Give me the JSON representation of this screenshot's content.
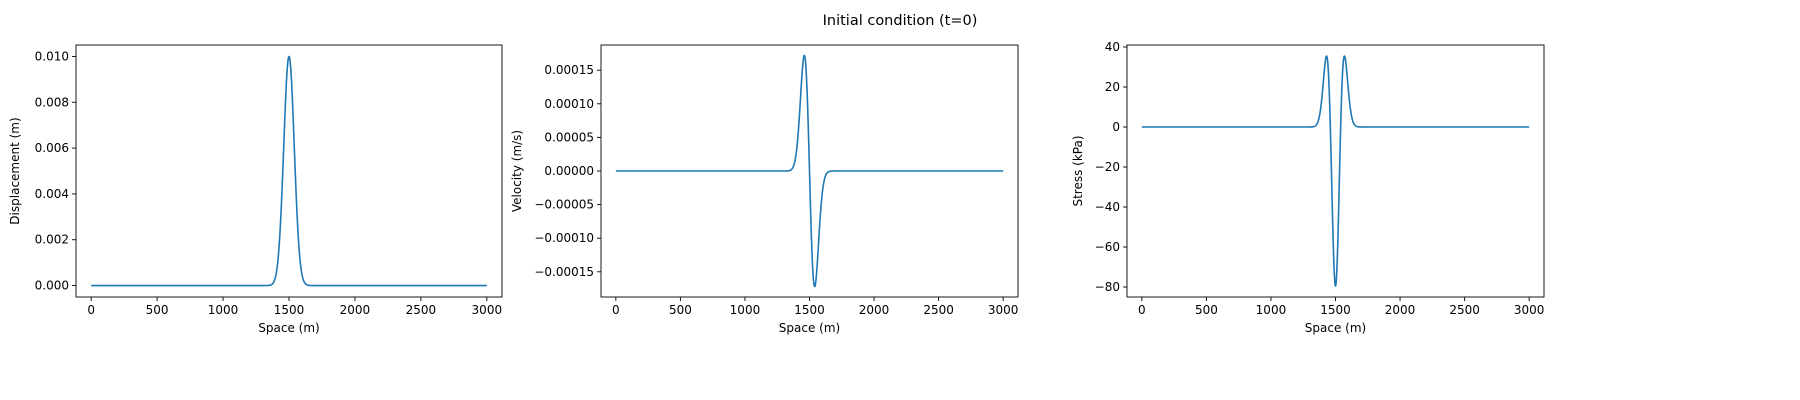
{
  "figure": {
    "suptitle": "Initial condition (t=0)",
    "line_color": "#1f77b4"
  },
  "chart_data": [
    {
      "type": "line",
      "id": "displacement",
      "title": "",
      "xlabel": "Space (m)",
      "ylabel": "Displacement (m)",
      "xlim": [
        -115,
        3115
      ],
      "ylim": [
        -0.0005,
        0.0105
      ],
      "xticks": [
        0,
        500,
        1000,
        1500,
        2000,
        2500,
        3000
      ],
      "xtick_labels": [
        "0",
        "500",
        "1000",
        "1500",
        "2000",
        "2500",
        "3000"
      ],
      "yticks": [
        0,
        0.002,
        0.004,
        0.006,
        0.008,
        0.01
      ],
      "ytick_labels": [
        "0.000",
        "0.002",
        "0.004",
        "0.006",
        "0.008",
        "0.010"
      ],
      "series": [
        {
          "shape": "gaussian",
          "x_range": [
            0,
            3000
          ],
          "center": 1500,
          "sigma": 40,
          "amplitude": 0.01
        }
      ]
    },
    {
      "type": "line",
      "id": "velocity",
      "title": "",
      "xlabel": "Space (m)",
      "ylabel": "Velocity (m/s)",
      "xlim": [
        -115,
        3115
      ],
      "ylim": [
        -0.0001875,
        0.0001875
      ],
      "xticks": [
        0,
        500,
        1000,
        1500,
        2000,
        2500,
        3000
      ],
      "xtick_labels": [
        "0",
        "500",
        "1000",
        "1500",
        "2000",
        "2500",
        "3000"
      ],
      "yticks": [
        -0.00015,
        -0.0001,
        -5e-05,
        0,
        5e-05,
        0.0001,
        0.00015
      ],
      "ytick_labels": [
        "−0.00015",
        "−0.00010",
        "−0.00005",
        "0.00000",
        "0.00005",
        "0.00010",
        "0.00015"
      ],
      "series": [
        {
          "shape": "gaussian-derivative",
          "x_range": [
            0,
            3000
          ],
          "center": 1500,
          "sigma": 40,
          "peak": 0.000172,
          "peak_x": 1460,
          "trough_x": 1540
        }
      ]
    },
    {
      "type": "line",
      "id": "stress",
      "title": "",
      "xlabel": "Space (m)",
      "ylabel": "Stress (kPa)",
      "xlim": [
        -115,
        3115
      ],
      "ylim": [
        -85,
        41
      ],
      "xticks": [
        0,
        500,
        1000,
        1500,
        2000,
        2500,
        3000
      ],
      "xtick_labels": [
        "0",
        "500",
        "1000",
        "1500",
        "2000",
        "2500",
        "3000"
      ],
      "yticks": [
        -80,
        -60,
        -40,
        -20,
        0,
        20,
        40
      ],
      "ytick_labels": [
        "−80",
        "−60",
        "−40",
        "−20",
        "0",
        "20",
        "40"
      ],
      "series": [
        {
          "shape": "gaussian-second-derivative",
          "x_range": [
            0,
            3000
          ],
          "center": 1500,
          "sigma": 40,
          "min_value": -79.5,
          "side_peak_value": 35.5,
          "side_peak_x": [
            1431,
            1569
          ]
        }
      ]
    }
  ]
}
